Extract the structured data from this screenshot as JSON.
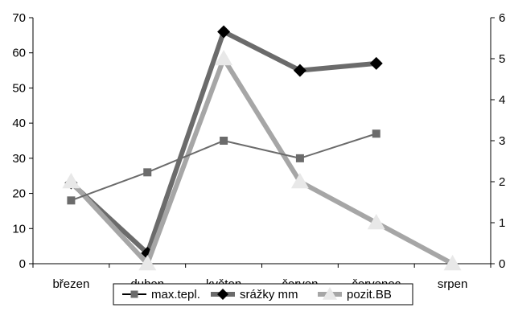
{
  "chart_data": {
    "type": "line",
    "categories": [
      "březen",
      "duben",
      "květen",
      "červen",
      "červenec",
      "srpen"
    ],
    "y_left": {
      "min": 0,
      "max": 70,
      "step": 10,
      "ticks": [
        "0",
        "10",
        "20",
        "30",
        "40",
        "50",
        "60",
        "70"
      ]
    },
    "y_right": {
      "min": 0,
      "max": 6,
      "step": 1,
      "ticks": [
        "0",
        "1",
        "2",
        "3",
        "4",
        "5",
        "6"
      ]
    },
    "series": [
      {
        "name": "max.tepl.",
        "axis": "left",
        "values": [
          18,
          26,
          35,
          30,
          37,
          null
        ],
        "color": "#6b6b6b",
        "marker": "square"
      },
      {
        "name": "srážky mm",
        "axis": "left",
        "values": [
          23,
          3,
          66,
          55,
          57,
          null
        ],
        "color": "#6b6b6b",
        "marker": "diamond"
      },
      {
        "name": "pozit.BB",
        "axis": "right",
        "values": [
          2,
          0,
          5,
          2,
          1,
          0
        ],
        "color": "#a6a6a6",
        "marker": "triangle"
      }
    ],
    "legend_position": "bottom",
    "grid": false
  }
}
